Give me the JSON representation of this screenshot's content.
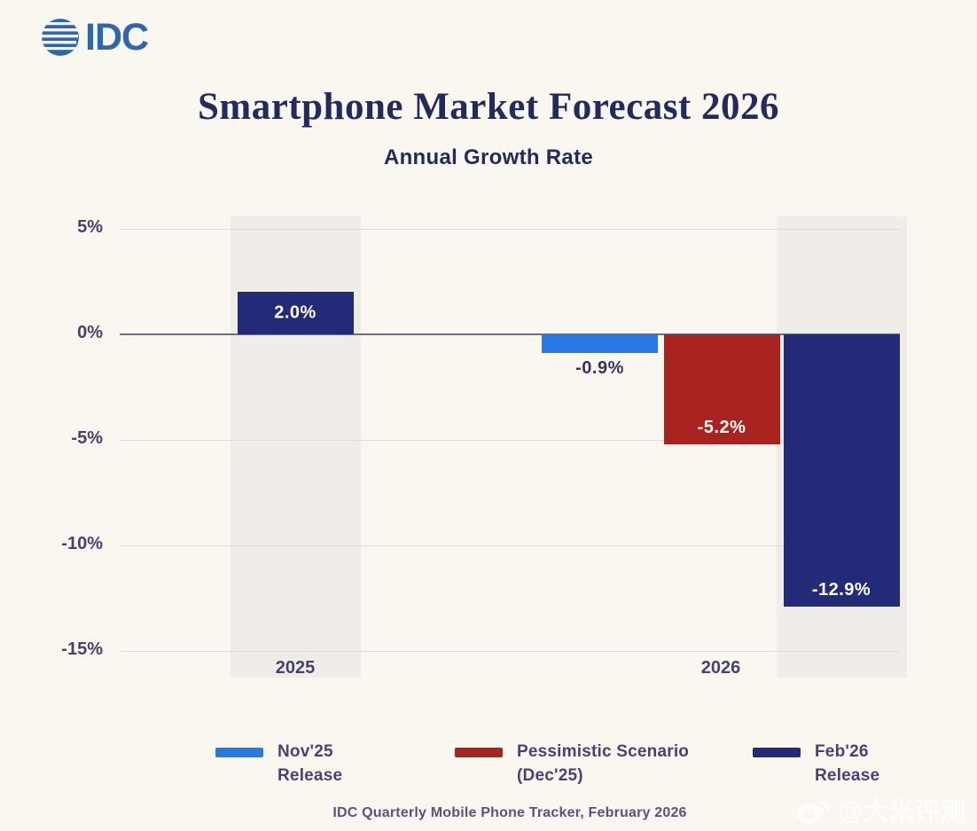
{
  "logo": {
    "text": "IDC"
  },
  "header": {
    "title": "Smartphone Market Forecast 2026",
    "subtitle": "Annual Growth Rate"
  },
  "chart_data": {
    "type": "bar",
    "title": "Smartphone Market Forecast 2026",
    "subtitle": "Annual Growth Rate",
    "unit": "%",
    "ylim": [
      5.6,
      -16
    ],
    "yticks": [
      5,
      0,
      -5,
      -10,
      -15
    ],
    "ytick_labels": [
      "5%",
      "0%",
      "-5%",
      "-10%",
      "-15%"
    ],
    "grid": true,
    "categories": [
      "2025",
      "2026"
    ],
    "bars": [
      {
        "group": "2025",
        "series": "Feb'26 Release",
        "value": 2.0,
        "label": "2.0%",
        "color": "#232b78",
        "label_color": "#ffffff",
        "label_pos": "inside",
        "highlight": true
      },
      {
        "group": "2026",
        "series": "Nov'25 Release",
        "value": -0.9,
        "label": "-0.9%",
        "color": "#2878e2",
        "label_color": "#383459",
        "label_pos": "below",
        "highlight": false
      },
      {
        "group": "2026",
        "series": "Pessimistic Scenario (Dec'25)",
        "value": -5.2,
        "label": "-5.2%",
        "color": "#a8231f",
        "label_color": "#ffffff",
        "label_pos": "inside-bottom",
        "highlight": false
      },
      {
        "group": "2026",
        "series": "Feb'26 Release",
        "value": -12.9,
        "label": "-12.9%",
        "color": "#232b78",
        "label_color": "#ffffff",
        "label_pos": "inside-bottom",
        "highlight": true
      }
    ],
    "legend_position": "bottom",
    "legend": [
      {
        "label_line1": "Nov'25",
        "label_line2": "Release",
        "color": "#2878e2"
      },
      {
        "label_line1": "Pessimistic Scenario",
        "label_line2": "(Dec'25)",
        "color": "#a8231f"
      },
      {
        "label_line1": "Feb'26",
        "label_line2": "Release",
        "color": "#232b78"
      }
    ]
  },
  "footer": {
    "source": "IDC Quarterly Mobile Phone Tracker, February 2026"
  },
  "watermark": {
    "text": "@大米评测"
  }
}
